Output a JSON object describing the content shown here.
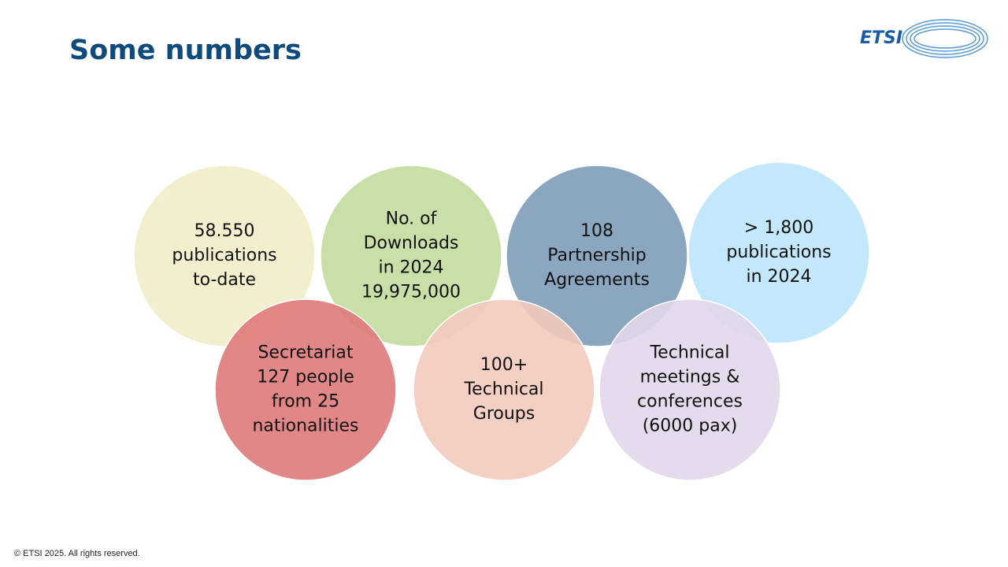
{
  "header": {
    "title": "Some numbers",
    "logo": "ETSI"
  },
  "circles": [
    {
      "lines": [
        "58.550",
        "publications",
        "to-date"
      ]
    },
    {
      "lines": [
        "No. of",
        "Downloads",
        "in 2024",
        "19,975,000"
      ]
    },
    {
      "lines": [
        "108",
        "Partnership",
        "Agreements"
      ]
    },
    {
      "lines": [
        "> 1,800",
        "publications",
        "in 2024"
      ]
    },
    {
      "lines": [
        "Secretariat",
        "127 people",
        "from 25",
        "nationalities"
      ]
    },
    {
      "lines": [
        "100+",
        "Technical",
        "Groups"
      ]
    },
    {
      "lines": [
        "Technical",
        "meetings &",
        "conferences",
        "(6000 pax)"
      ]
    }
  ],
  "footer": "© ETSI 2025. All rights reserved."
}
